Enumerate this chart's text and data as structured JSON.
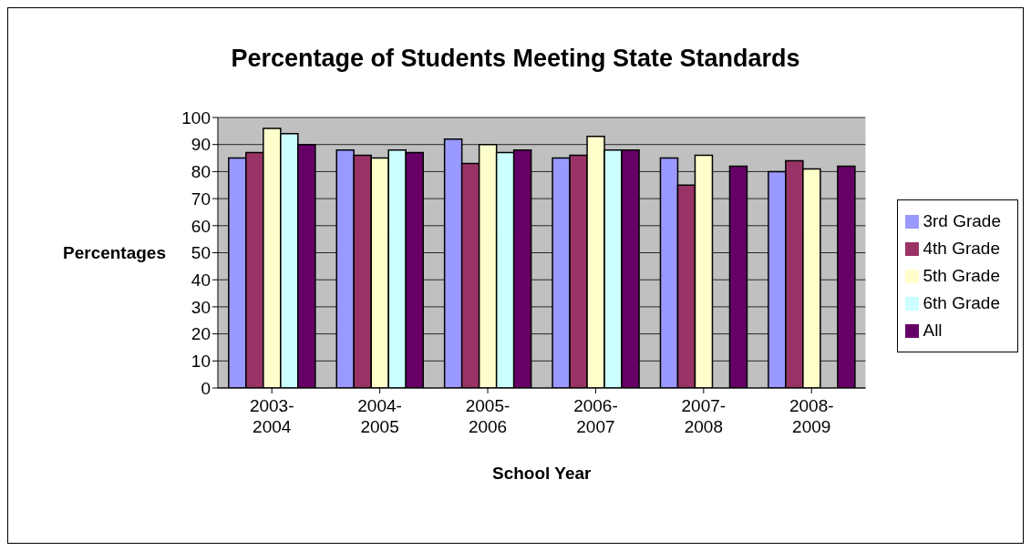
{
  "chart_data": {
    "type": "bar",
    "title": "Percentage of Students Meeting State Standards",
    "xlabel": "School Year",
    "ylabel": "Percentages",
    "categories": [
      "2003-2004",
      "2004-2005",
      "2005-2006",
      "2006-2007",
      "2007-2008",
      "2008-2009"
    ],
    "series": [
      {
        "name": "3rd Grade",
        "color": "#9999ff",
        "values": [
          85,
          88,
          92,
          85,
          85,
          80
        ]
      },
      {
        "name": "4th Grade",
        "color": "#993366",
        "values": [
          87,
          86,
          83,
          86,
          75,
          84
        ]
      },
      {
        "name": "5th Grade",
        "color": "#ffffcc",
        "values": [
          96,
          85,
          90,
          93,
          86,
          81
        ]
      },
      {
        "name": "6th Grade",
        "color": "#ccffff",
        "values": [
          94,
          88,
          87,
          88,
          null,
          null
        ]
      },
      {
        "name": "All",
        "color": "#660066",
        "values": [
          90,
          87,
          88,
          88,
          82,
          82
        ]
      }
    ],
    "ylim": [
      0,
      100
    ],
    "yticks": [
      0,
      10,
      20,
      30,
      40,
      50,
      60,
      70,
      80,
      90,
      100
    ],
    "grid": "y",
    "legend": "right"
  }
}
